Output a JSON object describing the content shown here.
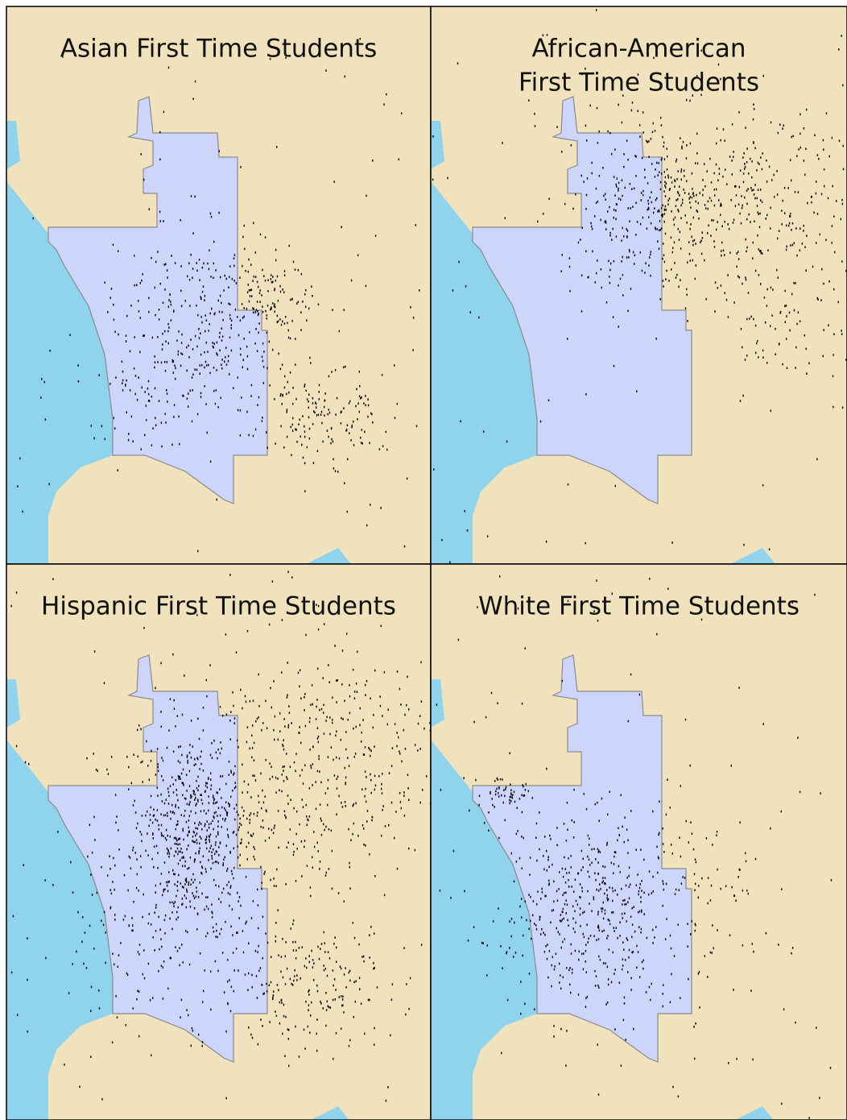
{
  "panels": [
    {
      "title_lines": [
        "Asian First Time Students"
      ]
    },
    {
      "title_lines": [
        "African-American",
        "First Time Students"
      ]
    },
    {
      "title_lines": [
        "Hispanic First Time Students"
      ]
    },
    {
      "title_lines": [
        "White First Time Students"
      ]
    }
  ]
}
